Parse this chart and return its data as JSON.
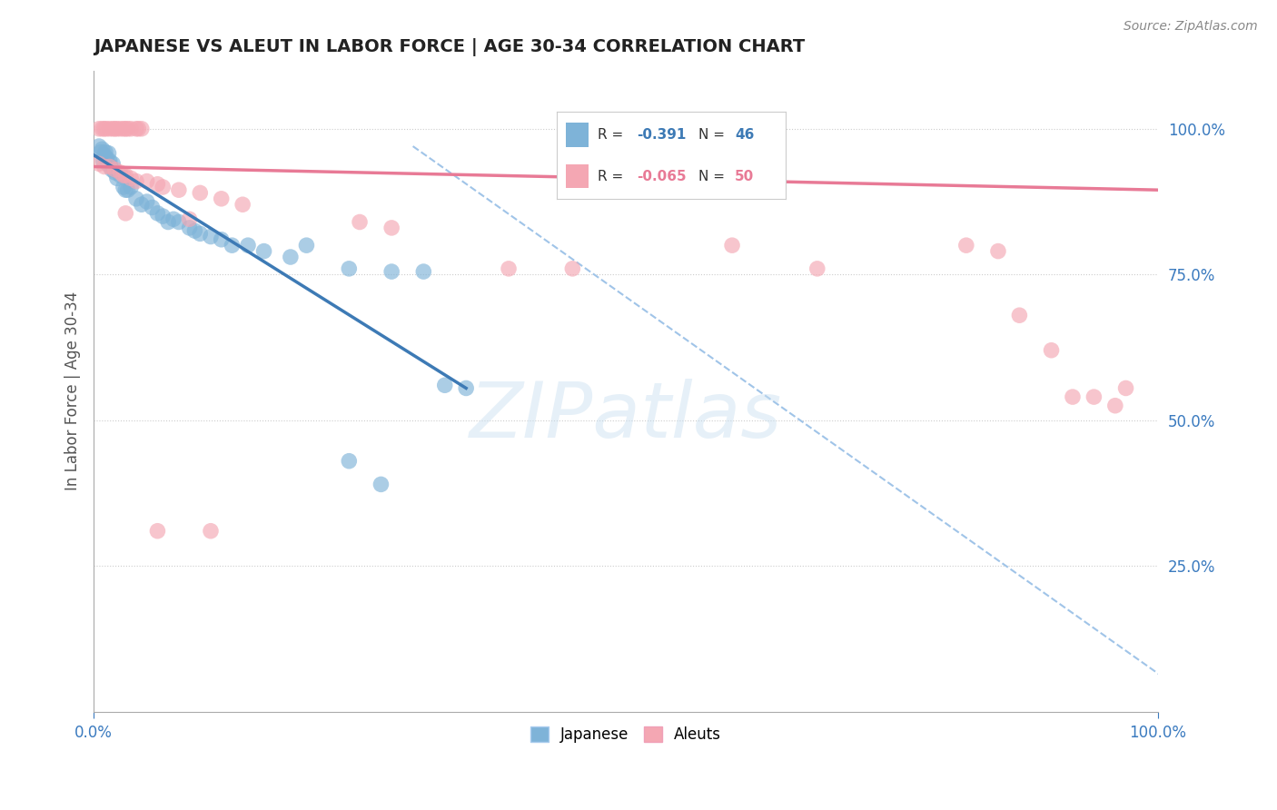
{
  "title": "JAPANESE VS ALEUT IN LABOR FORCE | AGE 30-34 CORRELATION CHART",
  "source": "Source: ZipAtlas.com",
  "ylabel": "In Labor Force | Age 30-34",
  "xlim": [
    0.0,
    1.0
  ],
  "ylim": [
    0.0,
    1.1
  ],
  "xtick_positions": [
    0.0,
    1.0
  ],
  "xtick_labels": [
    "0.0%",
    "100.0%"
  ],
  "ytick_positions": [
    0.25,
    0.5,
    0.75,
    1.0
  ],
  "ytick_labels": [
    "25.0%",
    "50.0%",
    "75.0%",
    "100.0%"
  ],
  "background_color": "#ffffff",
  "grid_color": "#cccccc",
  "japanese_color": "#7eb3d8",
  "aleut_color": "#f4a7b3",
  "japanese_R": -0.391,
  "japanese_N": 46,
  "aleut_R": -0.065,
  "aleut_N": 50,
  "japanese_line_color": "#3d7ab5",
  "aleut_line_color": "#e87a96",
  "diagonal_line_color": "#a0c4e8",
  "watermark": "ZIPatlas",
  "japanese_points": [
    [
      0.005,
      0.97
    ],
    [
      0.007,
      0.96
    ],
    [
      0.008,
      0.965
    ],
    [
      0.009,
      0.945
    ],
    [
      0.01,
      0.955
    ],
    [
      0.011,
      0.96
    ],
    [
      0.012,
      0.95
    ],
    [
      0.013,
      0.94
    ],
    [
      0.014,
      0.958
    ],
    [
      0.015,
      0.945
    ],
    [
      0.016,
      0.935
    ],
    [
      0.017,
      0.93
    ],
    [
      0.018,
      0.94
    ],
    [
      0.02,
      0.925
    ],
    [
      0.022,
      0.915
    ],
    [
      0.025,
      0.92
    ],
    [
      0.028,
      0.9
    ],
    [
      0.03,
      0.895
    ],
    [
      0.032,
      0.895
    ],
    [
      0.035,
      0.9
    ],
    [
      0.04,
      0.88
    ],
    [
      0.045,
      0.87
    ],
    [
      0.05,
      0.875
    ],
    [
      0.055,
      0.865
    ],
    [
      0.06,
      0.855
    ],
    [
      0.065,
      0.85
    ],
    [
      0.07,
      0.84
    ],
    [
      0.075,
      0.845
    ],
    [
      0.08,
      0.84
    ],
    [
      0.09,
      0.83
    ],
    [
      0.095,
      0.825
    ],
    [
      0.1,
      0.82
    ],
    [
      0.11,
      0.815
    ],
    [
      0.12,
      0.81
    ],
    [
      0.13,
      0.8
    ],
    [
      0.145,
      0.8
    ],
    [
      0.16,
      0.79
    ],
    [
      0.185,
      0.78
    ],
    [
      0.2,
      0.8
    ],
    [
      0.24,
      0.76
    ],
    [
      0.28,
      0.755
    ],
    [
      0.31,
      0.755
    ],
    [
      0.33,
      0.56
    ],
    [
      0.35,
      0.555
    ],
    [
      0.24,
      0.43
    ],
    [
      0.27,
      0.39
    ]
  ],
  "aleut_points": [
    [
      0.005,
      1.0
    ],
    [
      0.008,
      1.0
    ],
    [
      0.01,
      1.0
    ],
    [
      0.012,
      1.0
    ],
    [
      0.015,
      1.0
    ],
    [
      0.018,
      1.0
    ],
    [
      0.02,
      1.0
    ],
    [
      0.022,
      1.0
    ],
    [
      0.025,
      1.0
    ],
    [
      0.028,
      1.0
    ],
    [
      0.03,
      1.0
    ],
    [
      0.032,
      1.0
    ],
    [
      0.035,
      1.0
    ],
    [
      0.04,
      1.0
    ],
    [
      0.042,
      1.0
    ],
    [
      0.045,
      1.0
    ],
    [
      0.005,
      0.94
    ],
    [
      0.01,
      0.935
    ],
    [
      0.015,
      0.935
    ],
    [
      0.02,
      0.93
    ],
    [
      0.025,
      0.925
    ],
    [
      0.028,
      0.92
    ],
    [
      0.03,
      0.92
    ],
    [
      0.035,
      0.915
    ],
    [
      0.04,
      0.91
    ],
    [
      0.05,
      0.91
    ],
    [
      0.06,
      0.905
    ],
    [
      0.065,
      0.9
    ],
    [
      0.08,
      0.895
    ],
    [
      0.1,
      0.89
    ],
    [
      0.12,
      0.88
    ],
    [
      0.14,
      0.87
    ],
    [
      0.03,
      0.855
    ],
    [
      0.09,
      0.845
    ],
    [
      0.25,
      0.84
    ],
    [
      0.28,
      0.83
    ],
    [
      0.39,
      0.76
    ],
    [
      0.45,
      0.76
    ],
    [
      0.6,
      0.8
    ],
    [
      0.68,
      0.76
    ],
    [
      0.82,
      0.8
    ],
    [
      0.85,
      0.79
    ],
    [
      0.87,
      0.68
    ],
    [
      0.9,
      0.62
    ],
    [
      0.92,
      0.54
    ],
    [
      0.94,
      0.54
    ],
    [
      0.96,
      0.525
    ],
    [
      0.97,
      0.555
    ],
    [
      0.06,
      0.31
    ],
    [
      0.11,
      0.31
    ]
  ]
}
